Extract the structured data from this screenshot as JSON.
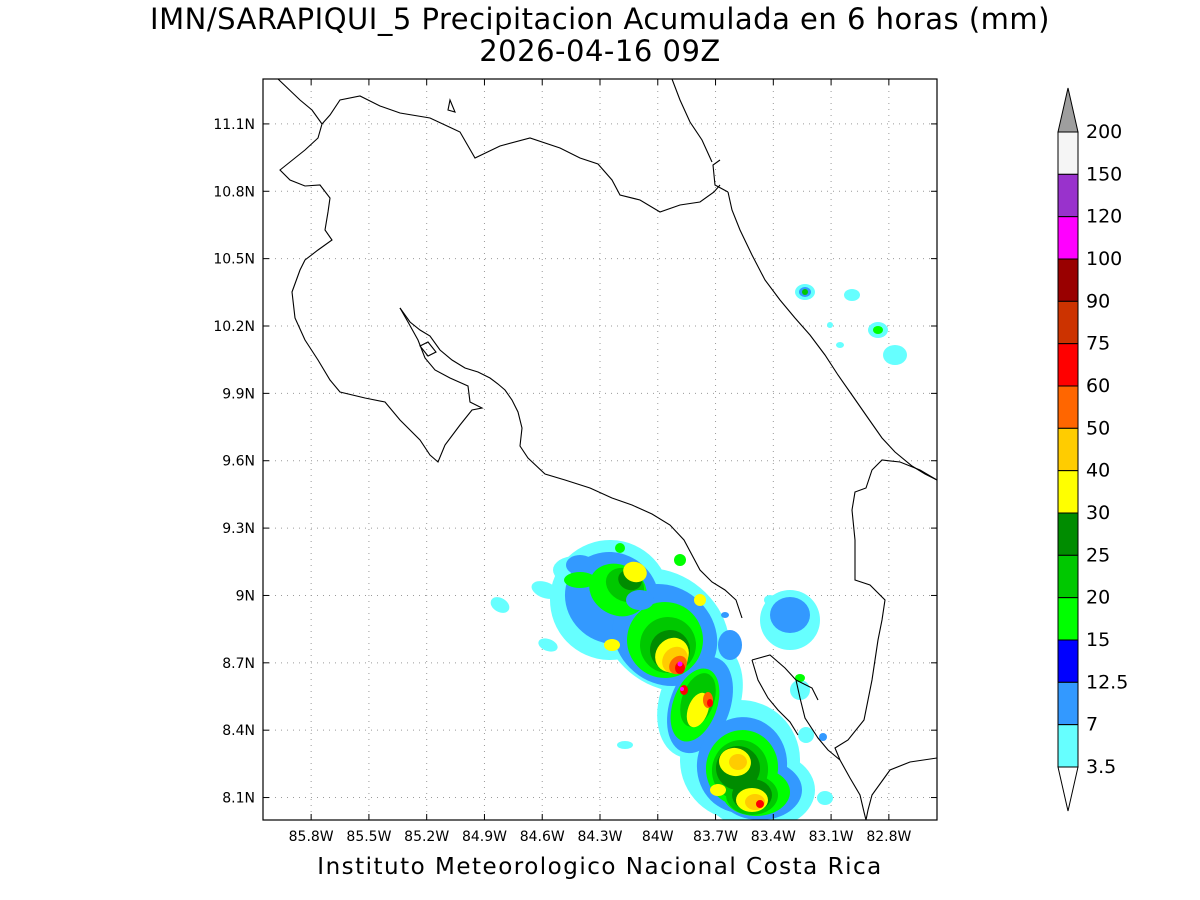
{
  "title": {
    "line1": "IMN/SARAPIQUI_5 Precipitacion Acumulada en 6 horas (mm)",
    "line2": "2026-04-16 09Z"
  },
  "credit": "Instituto Meteorologico Nacional Costa Rica",
  "map": {
    "lon_range": [
      -86.05,
      -82.55
    ],
    "lat_range": [
      8.0,
      11.3
    ],
    "lon_ticks": [
      "85.8W",
      "85.5W",
      "85.2W",
      "84.9W",
      "84.6W",
      "84.3W",
      "84W",
      "83.7W",
      "83.4W",
      "83.1W",
      "82.8W"
    ],
    "lat_ticks": [
      "11.1N",
      "10.8N",
      "10.5N",
      "10.2N",
      "9.9N",
      "9.6N",
      "9.3N",
      "9N",
      "8.7N",
      "8.4N",
      "8.1N"
    ],
    "grid": "dotted"
  },
  "colorbar": {
    "labels": [
      "200",
      "150",
      "120",
      "100",
      "90",
      "75",
      "60",
      "50",
      "40",
      "30",
      "25",
      "20",
      "15",
      "12.5",
      "7",
      "3.5"
    ],
    "colors": [
      "#9e9e9e",
      "#f5f5f5",
      "#9932cc",
      "#ff00ff",
      "#990000",
      "#cc3300",
      "#ff0000",
      "#ff6600",
      "#ffcc00",
      "#ffff00",
      "#008c00",
      "#00c800",
      "#00ff00",
      "#0000ff",
      "#3399ff",
      "#66ffff",
      "#ffffff"
    ]
  }
}
